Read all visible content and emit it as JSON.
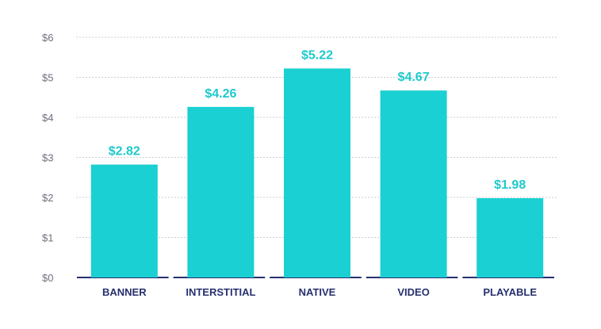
{
  "chart_data": {
    "type": "bar",
    "title": "",
    "xlabel": "",
    "ylabel": "",
    "categories": [
      "BANNER",
      "INTERSTITIAL",
      "NATIVE",
      "VIDEO",
      "PLAYABLE"
    ],
    "values": [
      2.82,
      4.26,
      5.22,
      4.67,
      1.98
    ],
    "value_labels": [
      "$2.82",
      "$4.26",
      "$5.22",
      "$4.67",
      "$1.98"
    ],
    "ylim": [
      0,
      6
    ],
    "yticks": [
      0,
      1,
      2,
      3,
      4,
      5,
      6
    ],
    "ytick_labels": [
      "$0",
      "$1",
      "$2",
      "$3",
      "$4",
      "$5",
      "$6"
    ],
    "grid": true,
    "legend": "none"
  },
  "colors": {
    "bar": "#1ad0d2",
    "value_label": "#1ec9cc",
    "axis": "#27306e",
    "category_label": "#27306e",
    "tick_label": "#6b7080",
    "grid": "#c9ccd4"
  }
}
